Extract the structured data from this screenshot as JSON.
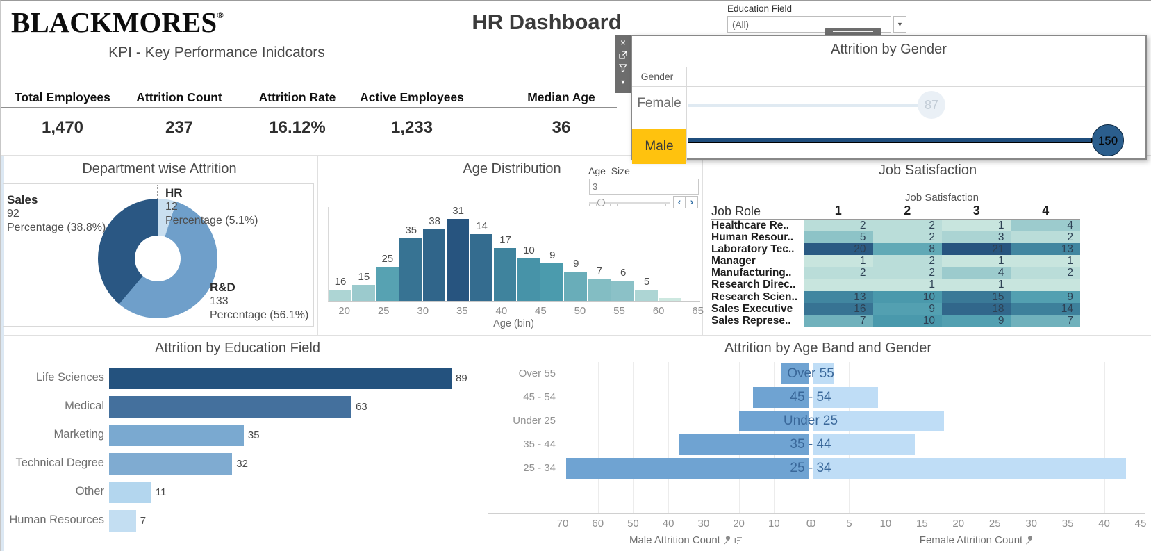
{
  "header": {
    "logo_text": "BLACKMORES",
    "logo_registered_mark": "®",
    "dashboard_title": "HR Dashboard",
    "education_filter": {
      "label": "Education Field",
      "selected": "(All)"
    }
  },
  "kpi": {
    "section_title": "KPI - Key Performance Inidcators",
    "items": [
      {
        "label": "Total Employees",
        "value": "1,470"
      },
      {
        "label": "Attrition Count",
        "value": "237"
      },
      {
        "label": "Attrition Rate",
        "value": "16.12%"
      },
      {
        "label": "Active Employees",
        "value": "1,233"
      },
      {
        "label": "Median Age",
        "value": "36"
      }
    ]
  },
  "gender_popup": {
    "title": "Attrition by Gender",
    "column_header": "Gender",
    "rows": [
      {
        "label": "Female",
        "value": "87",
        "highlighted": false
      },
      {
        "label": "Male",
        "value": "150",
        "highlighted": true
      }
    ],
    "highlight_color": "#ffc20e",
    "male_color": "#2b5e8d",
    "female_color": "#e0eaf2",
    "toolbar_icons": [
      "close-icon",
      "open-sheet-icon",
      "filter-icon",
      "more-options-icon"
    ]
  },
  "chart_data": [
    {
      "id": "department_attrition",
      "type": "pie",
      "title": "Department wise Attrition",
      "slices": [
        {
          "label": "HR",
          "value": 12,
          "pct": "5.1%",
          "color": "#c9dff0"
        },
        {
          "label": "R&D",
          "value": 133,
          "pct": "56.1%",
          "color": "#6f9fca"
        },
        {
          "label": "Sales",
          "value": 92,
          "pct": "38.8%",
          "color": "#2a5783"
        }
      ],
      "callouts": {
        "sales": {
          "name": "Sales",
          "value": "92",
          "pct": "Percentage (38.8%)"
        },
        "hr": {
          "name": "HR",
          "value": "12",
          "pct": "Percentage (5.1%)"
        },
        "rd": {
          "name": "R&D",
          "value": "133",
          "pct": "Percentage (56.1%)"
        }
      },
      "donut_hole": true
    },
    {
      "id": "age_distribution",
      "type": "bar",
      "title": "Age Distribution",
      "xlabel": "Age (bin)",
      "x_ticks": [
        20,
        25,
        30,
        35,
        40,
        45,
        50,
        55,
        60,
        65
      ],
      "bin_start_age": 18,
      "bin_size": 3,
      "labels": [
        "16",
        "15",
        "25",
        "35",
        "38",
        "31",
        "14",
        "17",
        "10",
        "9",
        "9",
        "7",
        "6",
        "5",
        ""
      ],
      "heights": [
        16,
        23,
        49,
        90,
        103,
        118,
        96,
        76,
        61,
        54,
        42,
        32,
        29,
        16,
        4
      ],
      "param": {
        "label": "Age_Size",
        "value": "3"
      },
      "color_scale": [
        "#d7eee4",
        "#4c9cae",
        "#27547f"
      ]
    },
    {
      "id": "job_satisfaction",
      "type": "heatmap",
      "title": "Job Satisfaction",
      "column_group_label": "Job Satisfaction",
      "row_header": "Job Role",
      "columns": [
        "1",
        "2",
        "3",
        "4"
      ],
      "rows": [
        {
          "label": "Healthcare Re..",
          "values": [
            2,
            2,
            1,
            4
          ]
        },
        {
          "label": "Human Resour..",
          "values": [
            5,
            2,
            3,
            2
          ]
        },
        {
          "label": "Laboratory Tec..",
          "values": [
            20,
            8,
            21,
            13
          ]
        },
        {
          "label": "Manager",
          "values": [
            1,
            2,
            1,
            1
          ]
        },
        {
          "label": "Manufacturing..",
          "values": [
            2,
            2,
            4,
            2
          ]
        },
        {
          "label": "Research Direc..",
          "values": [
            null,
            1,
            1,
            null
          ]
        },
        {
          "label": "Research Scien..",
          "values": [
            13,
            10,
            15,
            9
          ]
        },
        {
          "label": "Sales Executive",
          "values": [
            16,
            9,
            18,
            14
          ]
        },
        {
          "label": "Sales Represe..",
          "values": [
            7,
            10,
            9,
            7
          ]
        }
      ],
      "value_max": 21,
      "color_scale": [
        "#d7eee4",
        "#4c9cae",
        "#27547f"
      ]
    },
    {
      "id": "education_attrition",
      "type": "bar",
      "title": "Attrition by Education Field",
      "categories": [
        "Life Sciences",
        "Medical",
        "Marketing",
        "Technical Degree",
        "Other",
        "Human Resources"
      ],
      "values": [
        89,
        63,
        35,
        32,
        11,
        7
      ],
      "colors": [
        "#24527e",
        "#44709d",
        "#7aa9d0",
        "#7fabd1",
        "#b3d6ee",
        "#c3def2"
      ],
      "xmax": 95
    },
    {
      "id": "ageband_gender",
      "type": "bar",
      "title": "Attrition by Age Band and Gender",
      "categories": [
        "Over 55",
        "45 - 54",
        "Under 25",
        "35 - 44",
        "25 - 34"
      ],
      "series": [
        {
          "name": "Male",
          "values": [
            8,
            16,
            20,
            37,
            69
          ],
          "color": "#6fa3d2"
        },
        {
          "name": "Female",
          "values": [
            3,
            9,
            18,
            14,
            43
          ],
          "color": "#bfddf6"
        }
      ],
      "male_axis": {
        "label": "Male Attrition Count",
        "max": 70,
        "ticks": [
          70,
          60,
          50,
          40,
          30,
          20,
          10,
          0
        ]
      },
      "female_axis": {
        "label": "Female Attrition Count",
        "max": 45,
        "ticks": [
          0,
          5,
          10,
          15,
          20,
          25,
          30,
          35,
          40,
          45
        ]
      }
    }
  ]
}
